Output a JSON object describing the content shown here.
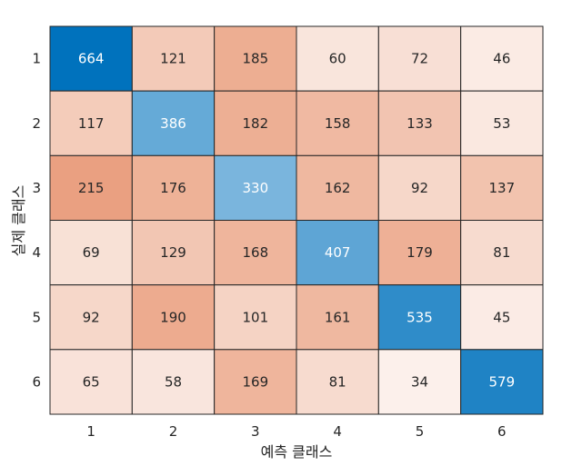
{
  "chart_data": {
    "type": "heatmap",
    "title": "",
    "xlabel": "예측 클래스",
    "ylabel": "실제 클래스",
    "x_categories": [
      "1",
      "2",
      "3",
      "4",
      "5",
      "6"
    ],
    "y_categories": [
      "1",
      "2",
      "3",
      "4",
      "5",
      "6"
    ],
    "values": [
      [
        664,
        121,
        185,
        60,
        72,
        46
      ],
      [
        117,
        386,
        182,
        158,
        133,
        53
      ],
      [
        215,
        176,
        330,
        162,
        92,
        137
      ],
      [
        69,
        129,
        168,
        407,
        179,
        81
      ],
      [
        92,
        190,
        101,
        161,
        535,
        45
      ],
      [
        65,
        58,
        169,
        81,
        34,
        579
      ]
    ],
    "colors": {
      "diagonal_max": "#0072bd",
      "diagonal_min": "#f2f7fc",
      "offdiag_max": "#d95319",
      "offdiag_min": "#ffffff",
      "cell_border": "#262626",
      "text_dark": "#262626",
      "text_light": "#ffffff"
    }
  }
}
